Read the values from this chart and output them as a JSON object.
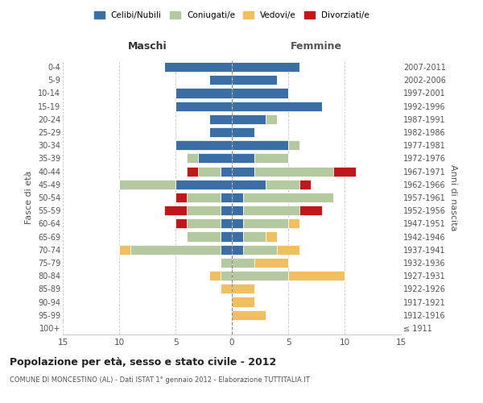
{
  "age_groups": [
    "100+",
    "95-99",
    "90-94",
    "85-89",
    "80-84",
    "75-79",
    "70-74",
    "65-69",
    "60-64",
    "55-59",
    "50-54",
    "45-49",
    "40-44",
    "35-39",
    "30-34",
    "25-29",
    "20-24",
    "15-19",
    "10-14",
    "5-9",
    "0-4"
  ],
  "birth_years": [
    "≤ 1911",
    "1912-1916",
    "1917-1921",
    "1922-1926",
    "1927-1931",
    "1932-1936",
    "1937-1941",
    "1942-1946",
    "1947-1951",
    "1952-1956",
    "1957-1961",
    "1962-1966",
    "1967-1971",
    "1972-1976",
    "1977-1981",
    "1982-1986",
    "1987-1991",
    "1992-1996",
    "1997-2001",
    "2002-2006",
    "2007-2011"
  ],
  "colors": {
    "celibi": "#3a6ea5",
    "coniugati": "#b5c9a0",
    "vedovi": "#f0c060",
    "divorziati": "#c0181a"
  },
  "male": {
    "celibi": [
      0,
      0,
      0,
      0,
      0,
      0,
      1,
      1,
      1,
      1,
      1,
      5,
      1,
      3,
      5,
      2,
      2,
      5,
      5,
      2,
      6
    ],
    "coniugati": [
      0,
      0,
      0,
      0,
      1,
      1,
      8,
      3,
      3,
      3,
      3,
      5,
      2,
      1,
      0,
      0,
      0,
      0,
      0,
      0,
      0
    ],
    "vedovi": [
      0,
      0,
      0,
      1,
      1,
      0,
      1,
      0,
      0,
      0,
      0,
      0,
      0,
      0,
      0,
      0,
      0,
      0,
      0,
      0,
      0
    ],
    "divorziati": [
      0,
      0,
      0,
      0,
      0,
      0,
      0,
      0,
      1,
      2,
      1,
      0,
      1,
      0,
      0,
      0,
      0,
      0,
      0,
      0,
      0
    ]
  },
  "female": {
    "celibi": [
      0,
      0,
      0,
      0,
      0,
      0,
      1,
      1,
      1,
      1,
      1,
      3,
      2,
      2,
      5,
      2,
      3,
      8,
      5,
      4,
      6
    ],
    "coniugati": [
      0,
      0,
      0,
      0,
      5,
      2,
      3,
      2,
      4,
      5,
      8,
      3,
      7,
      3,
      1,
      0,
      1,
      0,
      0,
      0,
      0
    ],
    "vedovi": [
      0,
      3,
      2,
      2,
      5,
      3,
      2,
      1,
      1,
      0,
      0,
      0,
      0,
      0,
      0,
      0,
      0,
      0,
      0,
      0,
      0
    ],
    "divorziati": [
      0,
      0,
      0,
      0,
      0,
      0,
      0,
      0,
      0,
      2,
      0,
      1,
      2,
      0,
      0,
      0,
      0,
      0,
      0,
      0,
      0
    ]
  },
  "xlim": 15,
  "title": "Popolazione per età, sesso e stato civile - 2012",
  "subtitle": "COMUNE DI MONCESTINO (AL) - Dati ISTAT 1° gennaio 2012 - Elaborazione TUTTITALIA.IT",
  "ylabel_left": "Fasce di età",
  "ylabel_right": "Anni di nascita",
  "xlabel_left": "Maschi",
  "xlabel_right": "Femmine",
  "bg_color": "#ffffff",
  "grid_color": "#cccccc"
}
